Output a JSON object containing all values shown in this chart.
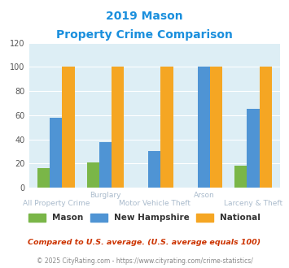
{
  "title_line1": "2019 Mason",
  "title_line2": "Property Crime Comparison",
  "x_labels_top": [
    "",
    "Burglary",
    "",
    "Arson",
    ""
  ],
  "x_labels_bottom": [
    "All Property Crime",
    "",
    "Motor Vehicle Theft",
    "",
    "Larceny & Theft"
  ],
  "mason_values": [
    16,
    21,
    0,
    0,
    18
  ],
  "nh_values": [
    58,
    38,
    30,
    100,
    65
  ],
  "national_values": [
    100,
    100,
    100,
    100,
    100
  ],
  "mason_color": "#7ab648",
  "nh_color": "#4f94d4",
  "national_color": "#f5a623",
  "bg_color": "#ddeef5",
  "ylim": [
    0,
    120
  ],
  "yticks": [
    0,
    20,
    40,
    60,
    80,
    100,
    120
  ],
  "legend_labels": [
    "Mason",
    "New Hampshire",
    "National"
  ],
  "footnote1": "Compared to U.S. average. (U.S. average equals 100)",
  "footnote2": "© 2025 CityRating.com - https://www.cityrating.com/crime-statistics/",
  "title_color": "#1a8fdd",
  "footnote1_color": "#cc3300",
  "footnote2_color": "#888888",
  "xlabel_color": "#aabbcc",
  "bar_width": 0.25
}
